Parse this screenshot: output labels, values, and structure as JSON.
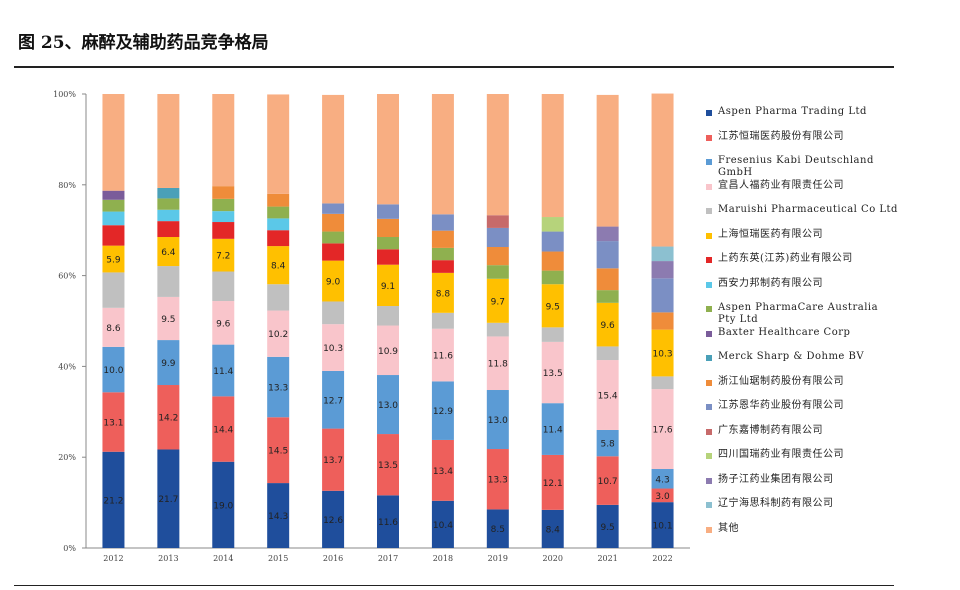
{
  "figure": {
    "title": "图 25、麻醉及辅助药品竞争格局"
  },
  "colors": [
    "#1f4e9c",
    "#ee5f5b",
    "#5b9bd5",
    "#f9c5cb",
    "#c0c0c0",
    "#ffc000",
    "#e32727",
    "#5bc8e8",
    "#8fb04f",
    "#7a5c9a",
    "#4aa0b8",
    "#ef8c3a",
    "#7b8fc4",
    "#c76a6a",
    "#b6d37b",
    "#8c7bb0",
    "#8cc0d0",
    "#f8ae82"
  ],
  "chart_data": {
    "type": "bar",
    "stacked": true,
    "categories": [
      "2012",
      "2013",
      "2014",
      "2015",
      "2016",
      "2017",
      "2018",
      "2019",
      "2020",
      "2021",
      "2022"
    ],
    "y_ticks": [
      "0%",
      "20%",
      "40%",
      "60%",
      "80%",
      "100%"
    ],
    "ylim": [
      0,
      100
    ],
    "legend_position": "right",
    "series": [
      {
        "name": "Aspen Pharma Trading Ltd",
        "values": [
          21.2,
          21.7,
          19.0,
          14.3,
          12.6,
          11.6,
          10.4,
          8.5,
          8.4,
          9.5,
          10.1
        ]
      },
      {
        "name": "江苏恒瑞医药股份有限公司",
        "values": [
          13.1,
          14.2,
          14.4,
          14.5,
          13.7,
          13.5,
          13.4,
          13.3,
          12.1,
          10.7,
          3.0
        ]
      },
      {
        "name": "Fresenius Kabi Deutschland GmbH",
        "values": [
          10.0,
          9.9,
          11.4,
          13.3,
          12.7,
          13.0,
          12.9,
          13.0,
          11.4,
          5.8,
          4.3
        ]
      },
      {
        "name": "宜昌人福药业有限责任公司",
        "values": [
          8.6,
          9.5,
          9.6,
          10.2,
          10.3,
          10.9,
          11.6,
          11.8,
          13.5,
          15.4,
          17.6
        ]
      },
      {
        "name": "Maruishi Pharmaceutical Co Ltd",
        "values": [
          7.8,
          6.8,
          6.5,
          5.8,
          5.0,
          4.3,
          3.5,
          3.0,
          3.2,
          3.0,
          2.8
        ]
      },
      {
        "name": "上海恒瑞医药有限公司",
        "values": [
          5.9,
          6.4,
          7.2,
          8.4,
          9.0,
          9.1,
          8.8,
          9.7,
          9.5,
          9.6,
          10.3
        ]
      },
      {
        "name": "上药东英(江苏)药业有限公司",
        "values": [
          4.5,
          3.5,
          3.7,
          3.5,
          3.8,
          3.4,
          2.8,
          0,
          0,
          0,
          0
        ]
      },
      {
        "name": "西安力邦制药有限公司",
        "values": [
          3.0,
          2.5,
          2.4,
          2.6,
          0,
          0,
          0,
          0,
          0,
          0,
          0
        ]
      },
      {
        "name": "Aspen PharmaCare Australia Pty Ltd",
        "values": [
          2.6,
          2.5,
          2.7,
          2.6,
          2.6,
          2.7,
          2.7,
          3.0,
          3.0,
          2.8,
          0
        ]
      },
      {
        "name": "Baxter Healthcare Corp",
        "values": [
          2.0,
          0,
          0,
          0,
          0,
          0,
          0,
          0,
          0,
          0,
          0
        ]
      },
      {
        "name": "Merck Sharp & Dohme BV",
        "values": [
          0,
          2.3,
          0,
          0,
          0,
          0,
          0,
          0,
          0,
          0,
          0
        ]
      },
      {
        "name": "浙江仙琚制药股份有限公司",
        "values": [
          0,
          0,
          2.8,
          2.8,
          3.9,
          4.0,
          3.8,
          4.0,
          4.2,
          4.8,
          3.8
        ]
      },
      {
        "name": "江苏恩华药业股份有限公司",
        "values": [
          0,
          0,
          0,
          0,
          2.3,
          3.2,
          3.6,
          4.2,
          4.4,
          6.0,
          7.5
        ]
      },
      {
        "name": "广东嘉博制药有限公司",
        "values": [
          0,
          0,
          0,
          0,
          0,
          0,
          0,
          2.8,
          0,
          0,
          0
        ]
      },
      {
        "name": "四川国瑞药业有限责任公司",
        "values": [
          0,
          0,
          0,
          0,
          0,
          0,
          0,
          0,
          3.2,
          0,
          0
        ]
      },
      {
        "name": "扬子江药业集团有限公司",
        "values": [
          0,
          0,
          0,
          0,
          0,
          0,
          0,
          0,
          0,
          3.2,
          3.8
        ]
      },
      {
        "name": "辽宁海思科制药有限公司",
        "values": [
          0,
          0,
          0,
          0,
          0,
          0,
          0,
          0,
          0,
          0,
          3.2
        ]
      },
      {
        "name": "其他",
        "values": [
          21.3,
          20.7,
          20.3,
          21.9,
          23.9,
          24.3,
          26.5,
          26.7,
          27.1,
          29.0,
          33.7
        ]
      }
    ],
    "labeled_series": [
      0,
      1,
      2,
      3,
      5
    ]
  }
}
